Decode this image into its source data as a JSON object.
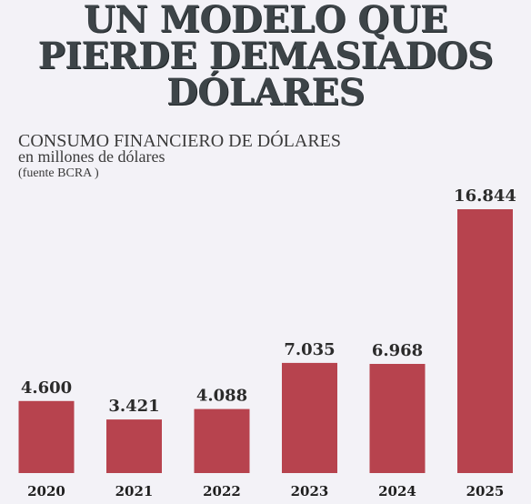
{
  "headline": {
    "line1": "UN MODELO QUE",
    "line2": "PIERDE DEMASIADOS",
    "line3": "DÓLARES"
  },
  "colors": {
    "background": "#f3f2f7",
    "bar": "#b7434e",
    "headline": "#3d4448"
  },
  "chart_data": {
    "type": "bar",
    "title": "CONSUMO FINANCIERO DE DÓLARES",
    "subtitle": "en millones de dólares",
    "source": "(fuente BCRA )",
    "categories": [
      "2020",
      "2021",
      "2022",
      "2023",
      "2024",
      "2025"
    ],
    "values": [
      4600,
      3421,
      4088,
      7035,
      6968,
      16844
    ],
    "value_labels": [
      "4.600",
      "3.421",
      "4.088",
      "7.035",
      "6.968",
      "16.844"
    ],
    "xlabel": "",
    "ylabel": "",
    "ylim": [
      0,
      16844
    ],
    "grid": false,
    "legend": false
  }
}
